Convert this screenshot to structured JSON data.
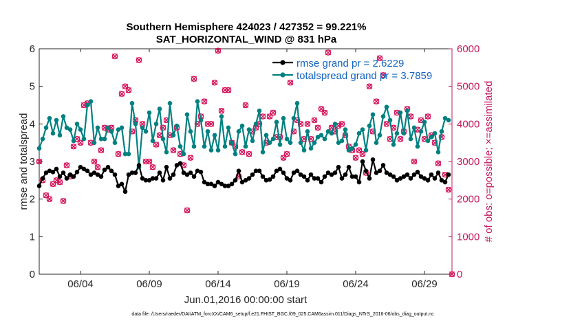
{
  "chart_data": {
    "type": "line",
    "title_line1": "Southern Hemisphere 424023 / 427352 = 99.221%",
    "title_line2": "SAT_HORIZONTAL_WIND @ 831 hPa",
    "xlabel": "Jun.01,2016 00:00:00 start",
    "ylabel_left": "rmse and totalspread",
    "ylabel_right": "# of obs: o=possible; ×=assimilated",
    "x_range": [
      1.0,
      31.0
    ],
    "ylim_left": [
      0,
      6
    ],
    "ylim_right": [
      0,
      6000
    ],
    "x_ticks": [
      {
        "value": 4.0,
        "label": "06/04"
      },
      {
        "value": 9.0,
        "label": "06/09"
      },
      {
        "value": 14.0,
        "label": "06/14"
      },
      {
        "value": 19.0,
        "label": "06/19"
      },
      {
        "value": 24.0,
        "label": "06/24"
      },
      {
        "value": 29.0,
        "label": "06/29"
      }
    ],
    "y_ticks_left": [
      "0",
      "1",
      "2",
      "3",
      "4",
      "5",
      "6"
    ],
    "y_ticks_right": [
      "0",
      "1000",
      "2000",
      "3000",
      "4000",
      "5000",
      "6000"
    ],
    "colors": {
      "rmse": "#000000",
      "spread": "#008080",
      "obs": "#D6125A",
      "right_axis": "#C2185B",
      "legend_text": "#1565C0"
    },
    "legend": [
      {
        "name": "rmse",
        "label": "rmse grand pr = 2.6229"
      },
      {
        "name": "spread",
        "label": "totalspread grand pr = 3.7859"
      }
    ],
    "footer": "data file: /Users/raeder/DAI/ATM_forcXX/CAM6_setup/f.e21.FHIST_BGC.f09_025.CAM6assim.011/Diags_NTrS_2016-06/obs_diag_output.nc",
    "series": [
      {
        "name": "rmse",
        "x": [
          1.0,
          1.25,
          1.5,
          1.75,
          2.0,
          2.25,
          2.5,
          2.75,
          3.0,
          3.25,
          3.5,
          3.75,
          4.0,
          4.25,
          4.5,
          4.75,
          5.0,
          5.25,
          5.5,
          5.75,
          6.0,
          6.25,
          6.5,
          6.75,
          7.0,
          7.25,
          7.5,
          7.75,
          8.0,
          8.25,
          8.5,
          8.75,
          9.0,
          9.25,
          9.5,
          9.75,
          10.0,
          10.25,
          10.5,
          10.75,
          11.0,
          11.25,
          11.5,
          11.75,
          12.0,
          12.25,
          12.5,
          12.75,
          13.0,
          13.25,
          13.5,
          13.75,
          14.0,
          14.25,
          14.5,
          14.75,
          15.0,
          15.25,
          15.5,
          15.75,
          16.0,
          16.25,
          16.5,
          16.75,
          17.0,
          17.25,
          17.5,
          17.75,
          18.0,
          18.25,
          18.5,
          18.75,
          19.0,
          19.25,
          19.5,
          19.75,
          20.0,
          20.25,
          20.5,
          20.75,
          21.0,
          21.25,
          21.5,
          21.75,
          22.0,
          22.25,
          22.5,
          22.75,
          23.0,
          23.25,
          23.5,
          23.75,
          24.0,
          24.25,
          24.5,
          24.75,
          25.0,
          25.25,
          25.5,
          25.75,
          26.0,
          26.25,
          26.5,
          26.75,
          27.0,
          27.25,
          27.5,
          27.75,
          28.0,
          28.25,
          28.5,
          28.75,
          29.0,
          29.25,
          29.5,
          29.75,
          30.0,
          30.25,
          30.5,
          30.75
        ],
        "values": [
          2.35,
          2.55,
          2.7,
          2.75,
          2.72,
          2.8,
          2.6,
          2.7,
          2.55,
          2.65,
          2.6,
          2.72,
          2.85,
          2.8,
          2.75,
          2.65,
          2.7,
          2.65,
          2.6,
          2.78,
          2.85,
          2.75,
          2.65,
          2.35,
          2.4,
          2.2,
          2.65,
          2.7,
          2.7,
          2.9,
          2.55,
          2.5,
          2.5,
          2.55,
          2.55,
          2.7,
          2.5,
          2.85,
          2.55,
          2.65,
          2.9,
          2.95,
          2.7,
          2.65,
          2.7,
          2.6,
          2.75,
          2.72,
          2.45,
          2.4,
          2.4,
          2.35,
          2.45,
          2.4,
          2.35,
          2.35,
          2.4,
          2.5,
          2.75,
          2.45,
          2.5,
          2.55,
          2.65,
          2.75,
          2.75,
          2.6,
          2.5,
          2.52,
          2.6,
          2.75,
          2.8,
          2.7,
          2.55,
          2.5,
          2.7,
          2.75,
          2.65,
          2.6,
          2.5,
          2.65,
          2.55,
          2.55,
          2.45,
          2.6,
          2.7,
          2.65,
          2.7,
          2.85,
          2.55,
          2.65,
          2.85,
          2.6,
          2.6,
          2.45,
          3.0,
          2.75,
          2.55,
          3.05,
          2.7,
          2.75,
          2.9,
          2.7,
          2.65,
          2.6,
          2.5,
          2.55,
          2.6,
          2.65,
          2.55,
          2.65,
          2.72,
          2.6,
          2.55,
          2.5,
          2.65,
          2.55,
          2.7,
          2.5,
          2.45,
          2.65
        ]
      },
      {
        "name": "spread",
        "x": [
          1.0,
          1.25,
          1.5,
          1.75,
          2.0,
          2.25,
          2.5,
          2.75,
          3.0,
          3.25,
          3.5,
          3.75,
          4.0,
          4.25,
          4.5,
          4.75,
          5.0,
          5.25,
          5.5,
          5.75,
          6.0,
          6.25,
          6.5,
          6.75,
          7.0,
          7.25,
          7.5,
          7.75,
          8.0,
          8.25,
          8.5,
          8.75,
          9.0,
          9.25,
          9.5,
          9.75,
          10.0,
          10.25,
          10.5,
          10.75,
          11.0,
          11.25,
          11.5,
          11.75,
          12.0,
          12.25,
          12.5,
          12.75,
          13.0,
          13.25,
          13.5,
          13.75,
          14.0,
          14.25,
          14.5,
          14.75,
          15.0,
          15.25,
          15.5,
          15.75,
          16.0,
          16.25,
          16.5,
          16.75,
          17.0,
          17.25,
          17.5,
          17.75,
          18.0,
          18.25,
          18.5,
          18.75,
          19.0,
          19.25,
          19.5,
          19.75,
          20.0,
          20.25,
          20.5,
          20.75,
          21.0,
          21.25,
          21.5,
          21.75,
          22.0,
          22.25,
          22.5,
          22.75,
          23.0,
          23.25,
          23.5,
          23.75,
          24.0,
          24.25,
          24.5,
          24.75,
          25.0,
          25.25,
          25.5,
          25.75,
          26.0,
          26.25,
          26.5,
          26.75,
          27.0,
          27.25,
          27.5,
          27.75,
          28.0,
          28.25,
          28.5,
          28.75,
          29.0,
          29.25,
          29.5,
          29.75,
          30.0,
          30.25,
          30.5,
          30.75
        ],
        "values": [
          3.35,
          3.6,
          3.9,
          4.15,
          3.75,
          4.1,
          3.7,
          4.2,
          3.9,
          3.85,
          3.55,
          4.0,
          3.85,
          3.6,
          4.5,
          4.6,
          3.5,
          3.9,
          3.6,
          3.6,
          3.9,
          3.8,
          3.5,
          3.85,
          3.9,
          3.2,
          3.2,
          4.55,
          4.0,
          2.85,
          3.9,
          3.8,
          4.3,
          3.55,
          4.0,
          4.4,
          3.6,
          3.25,
          4.55,
          3.7,
          3.95,
          3.4,
          3.2,
          4.25,
          3.8,
          3.4,
          4.6,
          4.1,
          3.4,
          3.8,
          3.3,
          3.7,
          3.3,
          4.2,
          3.4,
          3.9,
          3.5,
          3.2,
          3.8,
          3.95,
          3.4,
          3.85,
          3.55,
          4.0,
          4.35,
          3.25,
          3.7,
          3.5,
          3.6,
          4.05,
          3.45,
          4.15,
          3.6,
          3.5,
          4.15,
          4.55,
          3.5,
          3.3,
          3.8,
          3.35,
          3.5,
          3.65,
          3.7,
          3.6,
          3.8,
          3.75,
          4.0,
          3.5,
          3.55,
          3.85,
          3.3,
          3.35,
          3.45,
          3.75,
          3.85,
          3.3,
          3.95,
          4.25,
          3.5,
          3.7,
          4.2,
          4.45,
          4.1,
          3.45,
          3.75,
          4.3,
          3.75,
          4.35,
          3.6,
          3.9,
          3.4,
          3.8,
          4.05,
          3.55,
          3.65,
          3.75,
          3.25,
          3.8,
          4.15,
          4.1
        ]
      },
      {
        "name": "obs",
        "x": [
          1.0,
          1.25,
          1.5,
          1.75,
          2.0,
          2.25,
          2.5,
          2.75,
          3.0,
          3.25,
          3.5,
          3.75,
          4.0,
          4.25,
          4.5,
          4.75,
          5.0,
          5.25,
          5.5,
          5.75,
          6.0,
          6.25,
          6.5,
          6.75,
          7.0,
          7.25,
          7.5,
          7.75,
          8.0,
          8.25,
          8.5,
          8.75,
          9.0,
          9.25,
          9.5,
          9.75,
          10.0,
          10.25,
          10.5,
          10.75,
          11.0,
          11.25,
          11.5,
          11.75,
          12.0,
          12.25,
          12.5,
          12.75,
          13.0,
          13.25,
          13.5,
          13.75,
          14.0,
          14.25,
          14.5,
          14.75,
          15.0,
          15.25,
          15.5,
          15.75,
          16.0,
          16.25,
          16.5,
          16.75,
          17.0,
          17.25,
          17.5,
          17.75,
          18.0,
          18.25,
          18.5,
          18.75,
          19.0,
          19.25,
          19.5,
          19.75,
          20.0,
          20.25,
          20.5,
          20.75,
          21.0,
          21.25,
          21.5,
          21.75,
          22.0,
          22.25,
          22.5,
          22.75,
          23.0,
          23.25,
          23.5,
          23.75,
          24.0,
          24.25,
          24.5,
          24.75,
          25.0,
          25.25,
          25.5,
          25.75,
          26.0,
          26.25,
          26.5,
          26.75,
          27.0,
          27.25,
          27.5,
          27.75,
          28.0,
          28.25,
          28.5,
          28.75,
          29.0,
          29.25,
          29.5,
          29.75,
          30.0,
          30.25,
          30.5,
          30.75,
          31.0
        ],
        "values": [
          3000,
          2500,
          2100,
          2000,
          2400,
          2500,
          2450,
          1950,
          2900,
          2600,
          3400,
          3600,
          3500,
          4500,
          4550,
          3500,
          3000,
          2850,
          3300,
          3900,
          3850,
          3900,
          5800,
          3200,
          4800,
          5000,
          4900,
          3800,
          4100,
          5700,
          4000,
          3000,
          3000,
          2850,
          3450,
          3700,
          3900,
          4100,
          3700,
          3300,
          3900,
          3200,
          2900,
          1700,
          3100,
          5200,
          4000,
          4200,
          4600,
          4000,
          4000,
          5100,
          5950,
          4350,
          4900,
          4900,
          3500,
          3400,
          2600,
          3250,
          4500,
          3200,
          3800,
          3900,
          4000,
          4200,
          3500,
          4200,
          4300,
          3650,
          3650,
          3100,
          3200,
          5100,
          3800,
          4100,
          4000,
          3600,
          4000,
          3600,
          4100,
          3900,
          4400,
          4300,
          5900,
          3900,
          3800,
          3950,
          4000,
          3700,
          3400,
          3300,
          3100,
          3300,
          3200,
          2700,
          5000,
          3800,
          4600,
          5750,
          5300,
          4000,
          3600,
          3900,
          4300,
          3600,
          3800,
          4400,
          4200,
          3000,
          3850,
          4100,
          3600,
          4200,
          3700,
          3500,
          2950,
          3650,
          2650,
          2250,
          0
        ]
      }
    ]
  }
}
